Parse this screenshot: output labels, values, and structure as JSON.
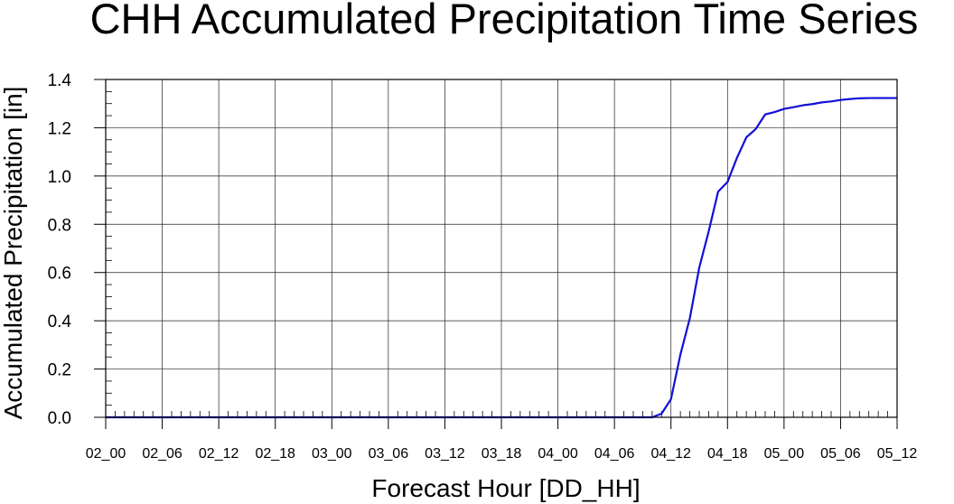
{
  "chart_data": {
    "type": "line",
    "title": "CHH Accumulated Precipitation Time Series",
    "xlabel": "Forecast Hour [DD_HH]",
    "ylabel": "Accumulated Precipitation [in]",
    "x_unit": "hours",
    "xlim": [
      0,
      84
    ],
    "ylim": [
      0,
      1.4
    ],
    "x_ticks": [
      {
        "x": 0,
        "label": "02_00"
      },
      {
        "x": 6,
        "label": "02_06"
      },
      {
        "x": 12,
        "label": "02_12"
      },
      {
        "x": 18,
        "label": "02_18"
      },
      {
        "x": 24,
        "label": "03_00"
      },
      {
        "x": 30,
        "label": "03_06"
      },
      {
        "x": 36,
        "label": "03_12"
      },
      {
        "x": 42,
        "label": "03_18"
      },
      {
        "x": 48,
        "label": "04_00"
      },
      {
        "x": 54,
        "label": "04_06"
      },
      {
        "x": 60,
        "label": "04_12"
      },
      {
        "x": 66,
        "label": "04_18"
      },
      {
        "x": 72,
        "label": "05_00"
      },
      {
        "x": 78,
        "label": "05_06"
      },
      {
        "x": 84,
        "label": "05_12"
      }
    ],
    "y_ticks": [
      {
        "y": 0.0,
        "label": "0.0"
      },
      {
        "y": 0.2,
        "label": "0.2"
      },
      {
        "y": 0.4,
        "label": "0.4"
      },
      {
        "y": 0.6,
        "label": "0.6"
      },
      {
        "y": 0.8,
        "label": "0.8"
      },
      {
        "y": 1.0,
        "label": "1.0"
      },
      {
        "y": 1.2,
        "label": "1.2"
      },
      {
        "y": 1.4,
        "label": "1.4"
      }
    ],
    "grid": true,
    "series": [
      {
        "color": "#1010d8",
        "points": [
          [
            0,
            0
          ],
          [
            58,
            0
          ],
          [
            59,
            0.015
          ],
          [
            60,
            0.075
          ],
          [
            61,
            0.26
          ],
          [
            62,
            0.41
          ],
          [
            63,
            0.62
          ],
          [
            64,
            0.77
          ],
          [
            65,
            0.935
          ],
          [
            66,
            0.975
          ],
          [
            67,
            1.075
          ],
          [
            68,
            1.16
          ],
          [
            69,
            1.195
          ],
          [
            70,
            1.255
          ],
          [
            71,
            1.265
          ],
          [
            72,
            1.278
          ],
          [
            73,
            1.285
          ],
          [
            74,
            1.293
          ],
          [
            75,
            1.298
          ],
          [
            76,
            1.305
          ],
          [
            77,
            1.309
          ],
          [
            78,
            1.315
          ],
          [
            79,
            1.319
          ],
          [
            80,
            1.322
          ],
          [
            81,
            1.323
          ],
          [
            82,
            1.323
          ],
          [
            83,
            1.323
          ],
          [
            84,
            1.323
          ]
        ]
      }
    ]
  }
}
